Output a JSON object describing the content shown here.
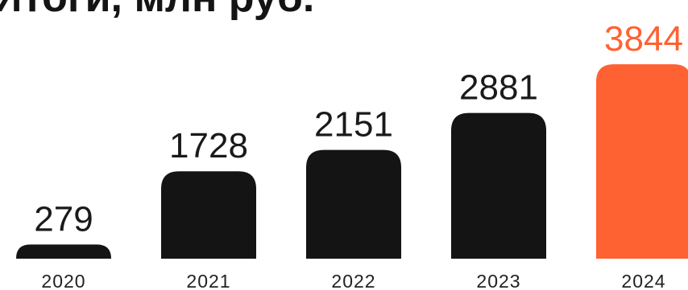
{
  "chart_data": {
    "type": "bar",
    "title": "Итоги, млн руб.",
    "categories": [
      "2020",
      "2021",
      "2022",
      "2023",
      "2024"
    ],
    "values": [
      279,
      1728,
      2151,
      2881,
      3844
    ],
    "value_labels": [
      "279",
      "1728",
      "2151",
      "2881",
      "3844"
    ],
    "xlabel": "",
    "ylabel": "",
    "ylim": [
      0,
      3844
    ],
    "grid": false,
    "legend": "none",
    "colors": {
      "default": "#141414",
      "highlight": "#ff6232",
      "highlight_index": 4
    }
  }
}
